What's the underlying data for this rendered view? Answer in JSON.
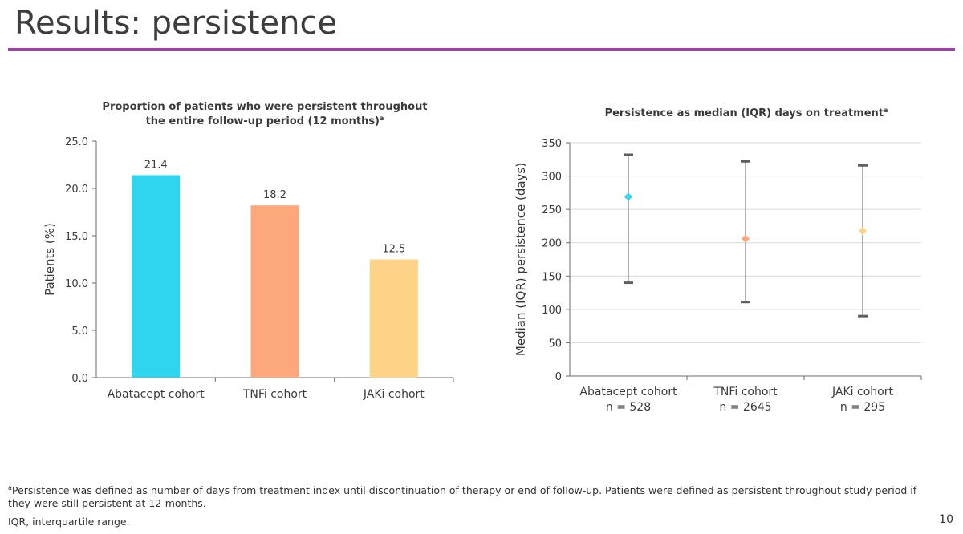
{
  "slide": {
    "title": "Results: persistence",
    "accent_color": "#a63cb4",
    "page_number": "10"
  },
  "footnotes": {
    "marker": "a",
    "definition": "Persistence was defined as number of days from treatment index until discontinuation of therapy or end of follow-up. Patients were defined as persistent throughout study period if they were still persistent at 12-months.",
    "abbreviation": "IQR, interquartile range."
  },
  "chart_data": [
    {
      "type": "bar",
      "title": "Proportion of patients who were persistent throughout the entire follow-up period (12 months)",
      "title_lines": [
        "Proportion of patients who were persistent throughout",
        "the entire follow-up period (12 months)"
      ],
      "title_footnote": "a",
      "categories": [
        "Abatacept cohort",
        "TNFi cohort",
        "JAKi cohort"
      ],
      "values": [
        21.4,
        18.2,
        12.5
      ],
      "value_labels": [
        "21.4",
        "18.2",
        "12.5"
      ],
      "colors": [
        "#2fd4ee",
        "#fca87c",
        "#fdd388"
      ],
      "xlabel": "",
      "ylabel": "Patients (%)",
      "ylim": [
        0,
        25
      ],
      "yticks": [
        "0.0",
        "5.0",
        "10.0",
        "15.0",
        "20.0",
        "25.0"
      ],
      "grid": false,
      "legend": "none"
    },
    {
      "type": "scatter",
      "subtype": "median with IQR error bars",
      "title": "Persistence as median (IQR) days on treatment",
      "title_footnote": "a",
      "categories": [
        "Abatacept cohort",
        "TNFi cohort",
        "JAKi cohort"
      ],
      "category_n": [
        "n = 528",
        "n = 2645",
        "n = 295"
      ],
      "median": [
        269,
        206,
        218
      ],
      "q1": [
        140,
        111,
        90
      ],
      "q3": [
        332,
        322,
        316
      ],
      "colors": [
        "#2fd4ee",
        "#fca87c",
        "#fdd388"
      ],
      "xlabel": "",
      "ylabel": "Median (IQR) persistence (days)",
      "ylim": [
        0,
        350
      ],
      "yticks": [
        "0",
        "50",
        "100",
        "150",
        "200",
        "250",
        "300",
        "350"
      ],
      "grid": true,
      "legend": "none"
    }
  ]
}
